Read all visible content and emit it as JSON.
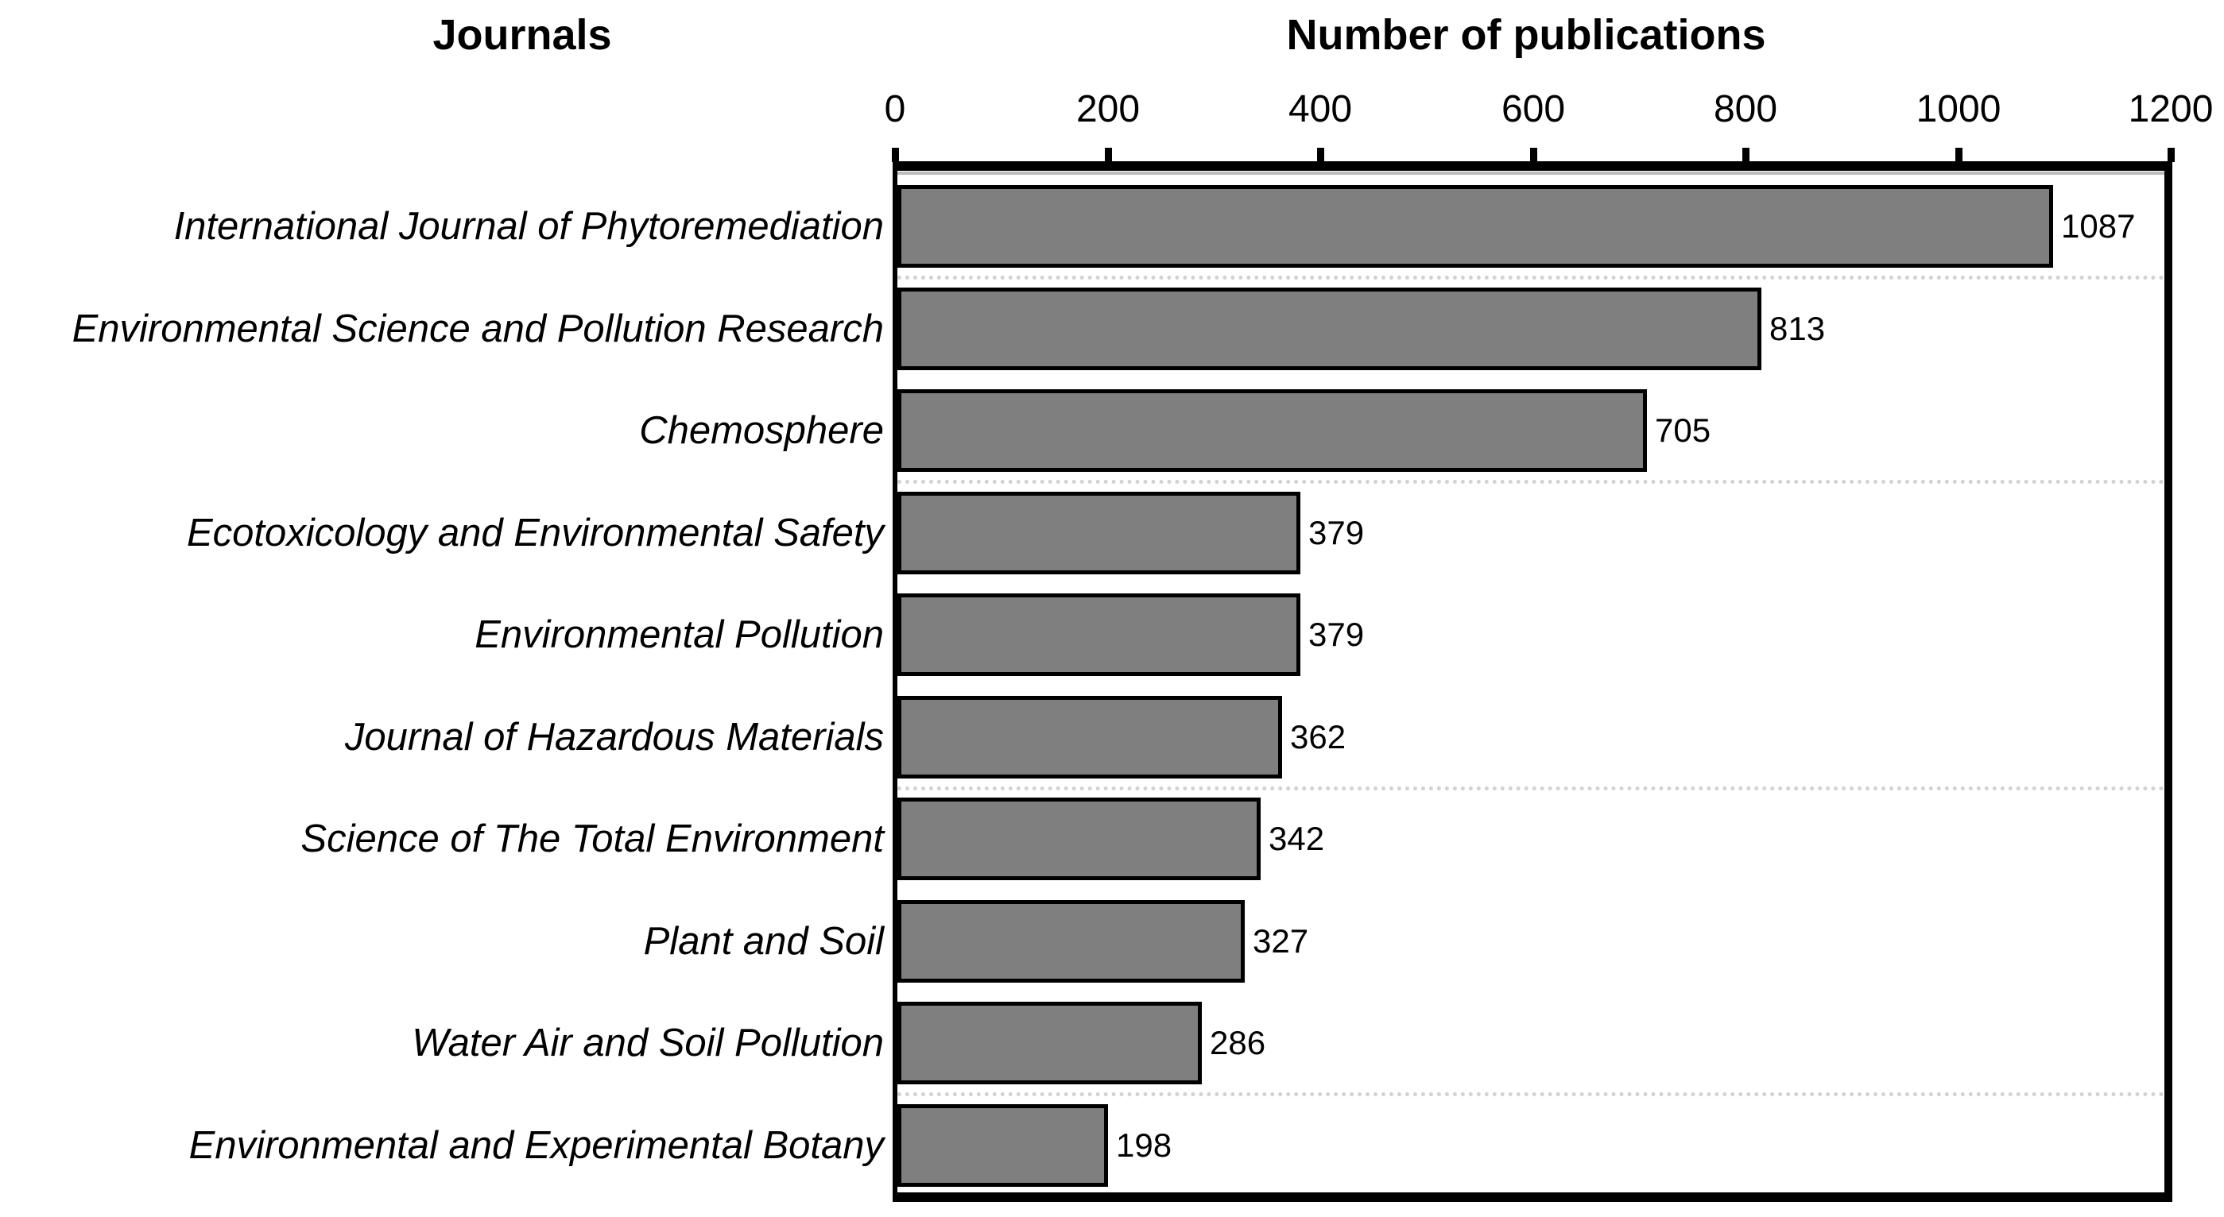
{
  "figure": {
    "left_title": "Journals",
    "right_title": "Number of publications"
  },
  "chart_data": {
    "type": "bar",
    "orientation": "horizontal",
    "title": "Number of publications",
    "xlabel": "Number of publications",
    "ylabel": "Journals",
    "axis_position": "top",
    "xlim": [
      0,
      1200
    ],
    "x_ticks": [
      0,
      200,
      400,
      600,
      800,
      1000,
      1200
    ],
    "categories": [
      "International Journal of Phytoremediation",
      "Environmental Science and Pollution Research",
      "Chemosphere",
      "Ecotoxicology and Environmental Safety",
      "Environmental Pollution",
      "Journal of Hazardous Materials",
      "Science of The Total Environment",
      "Plant and Soil",
      "Water Air and Soil Pollution",
      "Environmental and Experimental Botany"
    ],
    "values": [
      1087,
      813,
      705,
      379,
      379,
      362,
      342,
      327,
      286,
      198
    ],
    "bar_fill_color": "#7f7f7f",
    "bar_border_color": "#000000",
    "separator_color": "#d2d2d2",
    "separator_after_indices": [
      0,
      2,
      5,
      8
    ],
    "grid": "dotted-horizontal-partial",
    "legend_position": "none"
  }
}
